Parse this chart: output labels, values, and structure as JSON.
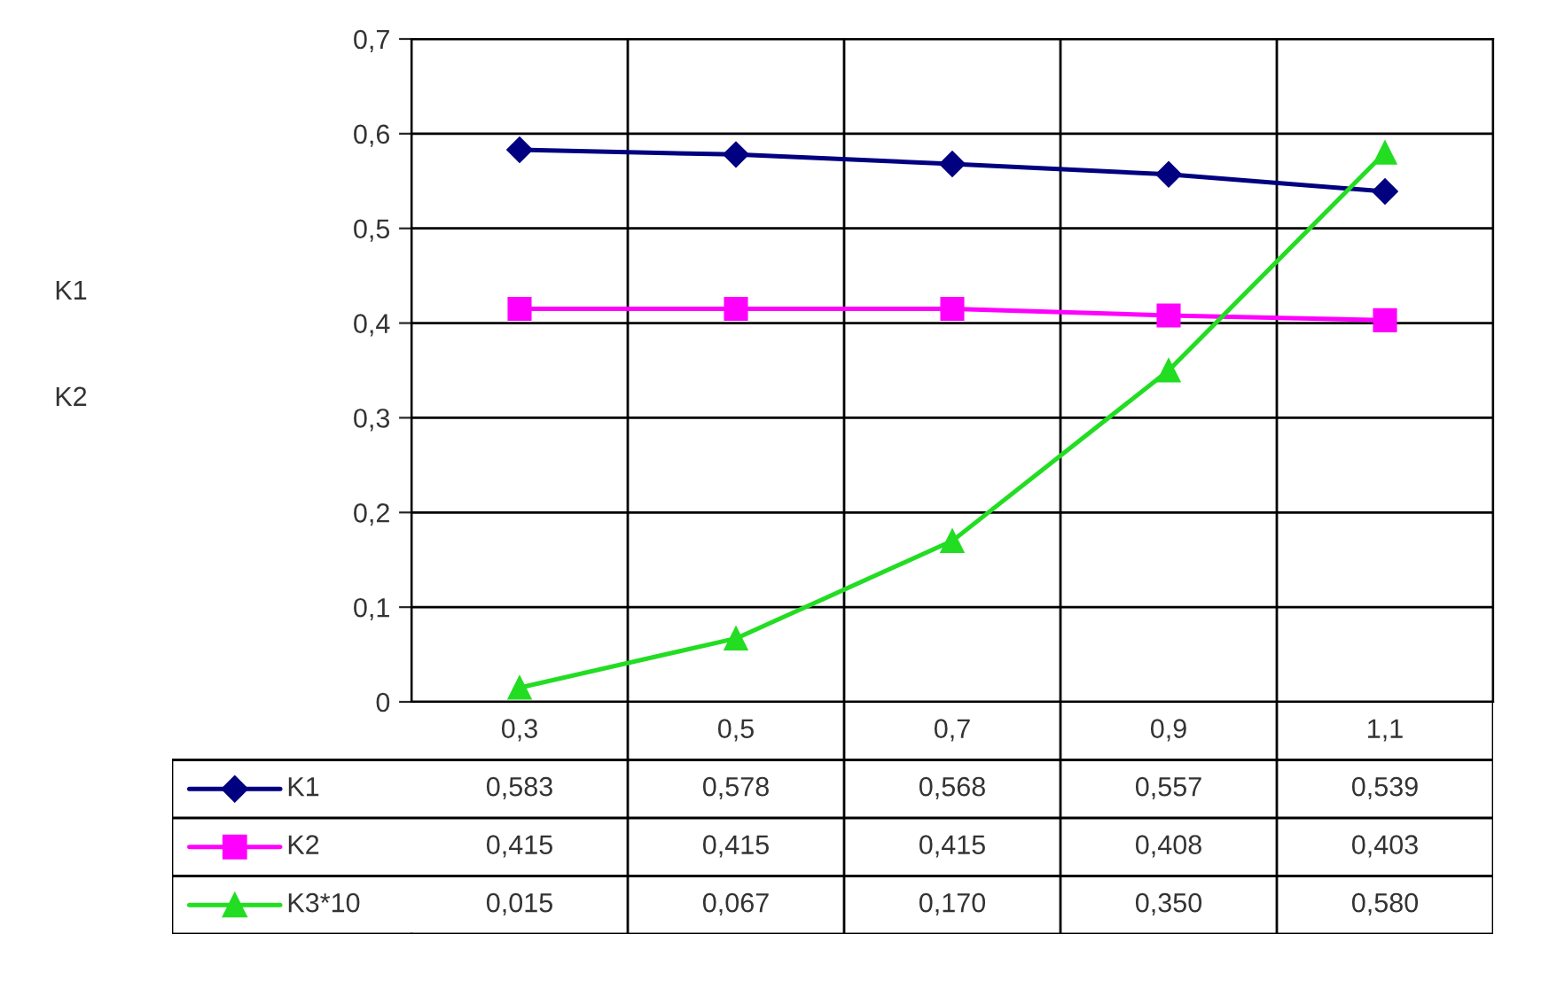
{
  "chart_data": {
    "type": "line",
    "categories": [
      "0,3",
      "0,5",
      "0,7",
      "0,9",
      "1,1"
    ],
    "series": [
      {
        "name": "K1",
        "color": "#000080",
        "marker": "diamond",
        "values": [
          0.583,
          0.578,
          0.568,
          0.557,
          0.539
        ],
        "value_labels": [
          "0,583",
          "0,578",
          "0,568",
          "0,557",
          "0,539"
        ]
      },
      {
        "name": "K2",
        "color": "#ff00ff",
        "marker": "square",
        "values": [
          0.415,
          0.415,
          0.415,
          0.408,
          0.403
        ],
        "value_labels": [
          "0,415",
          "0,415",
          "0,415",
          "0,408",
          "0,403"
        ]
      },
      {
        "name": "K3*10",
        "color": "#22dd22",
        "marker": "triangle",
        "values": [
          0.015,
          0.067,
          0.17,
          0.35,
          0.58
        ],
        "value_labels": [
          "0,015",
          "0,067",
          "0,170",
          "0,350",
          "0,580"
        ]
      }
    ],
    "ylim": [
      0,
      0.7
    ],
    "yticks": [
      {
        "value": 0,
        "label": "0"
      },
      {
        "value": 0.1,
        "label": "0,1"
      },
      {
        "value": 0.2,
        "label": "0,2"
      },
      {
        "value": 0.3,
        "label": "0,3"
      },
      {
        "value": 0.4,
        "label": "0,4"
      },
      {
        "value": 0.5,
        "label": "0,5"
      },
      {
        "value": 0.6,
        "label": "0,6"
      },
      {
        "value": 0.7,
        "label": "0,7"
      }
    ],
    "annotations": [
      "K1",
      "K2"
    ],
    "grid": true,
    "line_style": "solid",
    "legend": "bottom"
  }
}
